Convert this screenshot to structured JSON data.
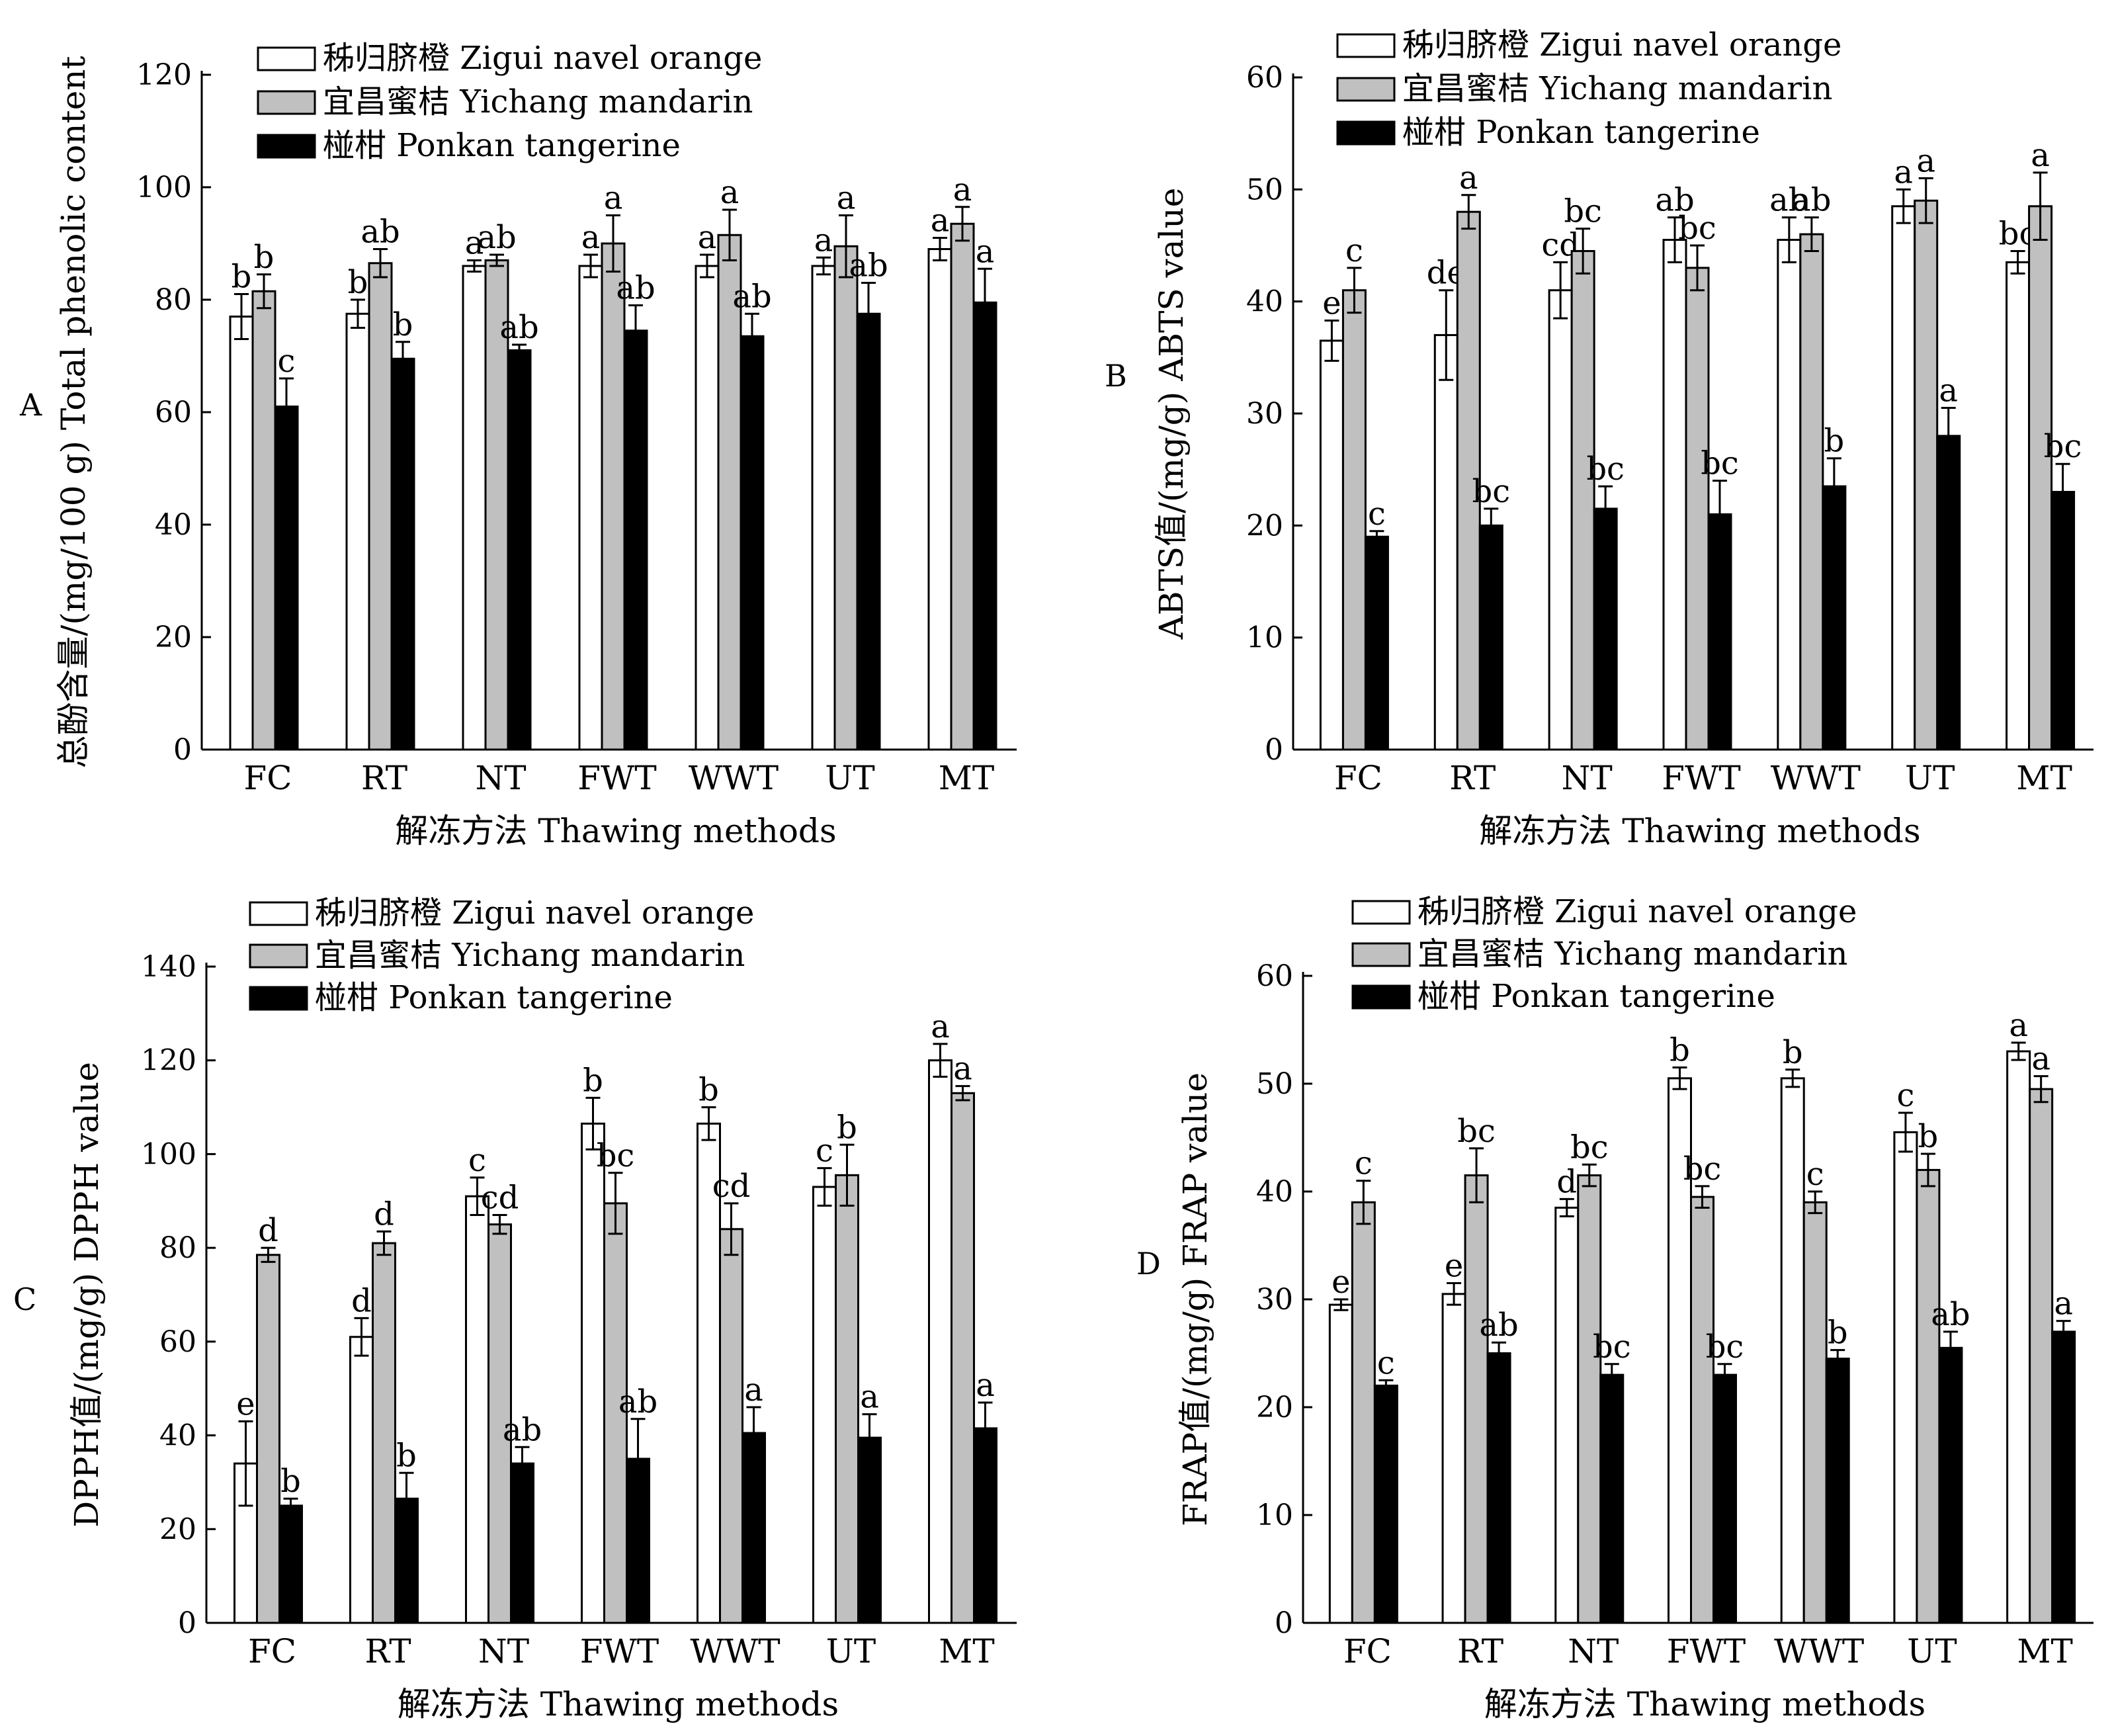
{
  "legend": [
    {
      "label": "秭归脐橙 Zigui navel orange",
      "color": "#ffffff"
    },
    {
      "label": "宜昌蜜桔 Yichang mandarin",
      "color": "#c0c0c0"
    },
    {
      "label": "椪柑 Ponkan tangerine",
      "color": "#000000"
    }
  ],
  "chart_data": [
    {
      "panel": "A",
      "type": "bar",
      "categories": [
        "FC",
        "RT",
        "NT",
        "FWT",
        "WWT",
        "UT",
        "MT"
      ],
      "xlabel": "解冻方法 Thawing methods",
      "ylabel": "总酚含量/(mg/100 g)  Total phenolic content",
      "ylim": [
        0,
        120
      ],
      "yticks": [
        "0",
        "20",
        "40",
        "60",
        "80",
        "100",
        "120"
      ],
      "legend_position": "top-left",
      "series": [
        {
          "name": "秭归脐橙 Zigui navel orange",
          "values": [
            77,
            77.5,
            86,
            86,
            86,
            86,
            89
          ],
          "errors": [
            4,
            2.5,
            1,
            2,
            2,
            1.5,
            2
          ],
          "letters": [
            "b",
            "b",
            "a",
            "a",
            "a",
            "a",
            "a"
          ]
        },
        {
          "name": "宜昌蜜桔 Yichang mandarin",
          "values": [
            81.5,
            86.5,
            87,
            90,
            91.5,
            89.5,
            93.5
          ],
          "errors": [
            3,
            2.5,
            1,
            5,
            4.5,
            5.5,
            3
          ],
          "letters": [
            "b",
            "ab",
            "ab",
            "a",
            "a",
            "a",
            "a"
          ]
        },
        {
          "name": "椪柑 Ponkan tangerine",
          "values": [
            61,
            69.5,
            71,
            74.5,
            73.5,
            77.5,
            79.5
          ],
          "errors": [
            5,
            3,
            1,
            4.5,
            4,
            5.5,
            6
          ],
          "letters": [
            "c",
            "b",
            "ab",
            "ab",
            "ab",
            "ab",
            "a"
          ]
        }
      ]
    },
    {
      "panel": "B",
      "type": "bar",
      "categories": [
        "FC",
        "RT",
        "NT",
        "FWT",
        "WWT",
        "UT",
        "MT"
      ],
      "xlabel": "解冻方法 Thawing methods",
      "ylabel": "ABTS值/(mg/g)  ABTS value",
      "ylim": [
        0,
        60
      ],
      "yticks": [
        "0",
        "10",
        "20",
        "30",
        "40",
        "50",
        "60"
      ],
      "legend_position": "top",
      "series": [
        {
          "name": "秭归脐橙 Zigui navel orange",
          "values": [
            36.5,
            37,
            41,
            45.5,
            45.5,
            48.5,
            43.5
          ],
          "errors": [
            1.8,
            4,
            2.5,
            2,
            2,
            1.5,
            1
          ],
          "letters": [
            "e",
            "de",
            "cd",
            "ab",
            "ab",
            "a",
            "bc"
          ]
        },
        {
          "name": "宜昌蜜桔 Yichang mandarin",
          "values": [
            41,
            48,
            44.5,
            43,
            46,
            49,
            48.5
          ],
          "errors": [
            2,
            1.5,
            2,
            2,
            1.5,
            2,
            3
          ],
          "letters": [
            "c",
            "a",
            "bc",
            "bc",
            "ab",
            "a",
            "a"
          ]
        },
        {
          "name": "椪柑 Ponkan tangerine",
          "values": [
            19,
            20,
            21.5,
            21,
            23.5,
            28,
            23
          ],
          "errors": [
            0.5,
            1.5,
            2,
            3,
            2.5,
            2.5,
            2.5
          ],
          "letters": [
            "c",
            "bc",
            "bc",
            "bc",
            "b",
            "a",
            "bc"
          ]
        }
      ]
    },
    {
      "panel": "C",
      "type": "bar",
      "categories": [
        "FC",
        "RT",
        "NT",
        "FWT",
        "WWT",
        "UT",
        "MT"
      ],
      "xlabel": "解冻方法 Thawing methods",
      "ylabel": "DPPH值/(mg/g)  DPPH value",
      "ylim": [
        0,
        140
      ],
      "yticks": [
        "0",
        "20",
        "40",
        "60",
        "80",
        "100",
        "120",
        "140"
      ],
      "legend_position": "top-left",
      "series": [
        {
          "name": "秭归脐橙 Zigui navel orange",
          "values": [
            34,
            61,
            91,
            106.5,
            106.5,
            93,
            120
          ],
          "errors": [
            9,
            4,
            4,
            5.5,
            3.5,
            4,
            3.5
          ],
          "letters": [
            "e",
            "d",
            "c",
            "b",
            "b",
            "c",
            "a"
          ]
        },
        {
          "name": "宜昌蜜桔 Yichang mandarin",
          "values": [
            78.5,
            81,
            85,
            89.5,
            84,
            95.5,
            113
          ],
          "errors": [
            1.5,
            2.5,
            2,
            6.5,
            5.5,
            6.5,
            1.5
          ],
          "letters": [
            "d",
            "d",
            "cd",
            "bc",
            "cd",
            "b",
            "a"
          ]
        },
        {
          "name": "椪柑 Ponkan tangerine",
          "values": [
            25,
            26.5,
            34,
            35,
            40.5,
            39.5,
            41.5
          ],
          "errors": [
            1.5,
            5.5,
            3.5,
            8.5,
            5.5,
            5,
            5.5
          ],
          "letters": [
            "b",
            "b",
            "ab",
            "ab",
            "a",
            "a",
            "a"
          ]
        }
      ]
    },
    {
      "panel": "D",
      "type": "bar",
      "categories": [
        "FC",
        "RT",
        "NT",
        "FWT",
        "WWT",
        "UT",
        "MT"
      ],
      "xlabel": "解冻方法 Thawing methods",
      "ylabel": "FRAP值/(mg/g)  FRAP value",
      "ylim": [
        0,
        60
      ],
      "yticks": [
        "0",
        "10",
        "20",
        "30",
        "40",
        "50",
        "60"
      ],
      "legend_position": "top",
      "series": [
        {
          "name": "秭归脐橙 Zigui navel orange",
          "values": [
            29.5,
            30.5,
            38.5,
            50.5,
            50.5,
            45.5,
            53
          ],
          "errors": [
            0.5,
            1,
            0.8,
            1,
            0.8,
            1.8,
            0.8
          ],
          "letters": [
            "e",
            "e",
            "d",
            "b",
            "b",
            "c",
            "a"
          ]
        },
        {
          "name": "宜昌蜜桔 Yichang mandarin",
          "values": [
            39,
            41.5,
            41.5,
            39.5,
            39,
            42,
            49.5
          ],
          "errors": [
            2,
            2.5,
            1,
            1,
            1,
            1.5,
            1.2
          ],
          "letters": [
            "c",
            "bc",
            "bc",
            "bc",
            "c",
            "b",
            "a"
          ]
        },
        {
          "name": "椪柑 Ponkan tangerine",
          "values": [
            22,
            25,
            23,
            23,
            24.5,
            25.5,
            27
          ],
          "errors": [
            0.5,
            1,
            1,
            1,
            0.8,
            1.5,
            1
          ],
          "letters": [
            "c",
            "ab",
            "bc",
            "bc",
            "b",
            "ab",
            "a"
          ]
        }
      ]
    }
  ]
}
